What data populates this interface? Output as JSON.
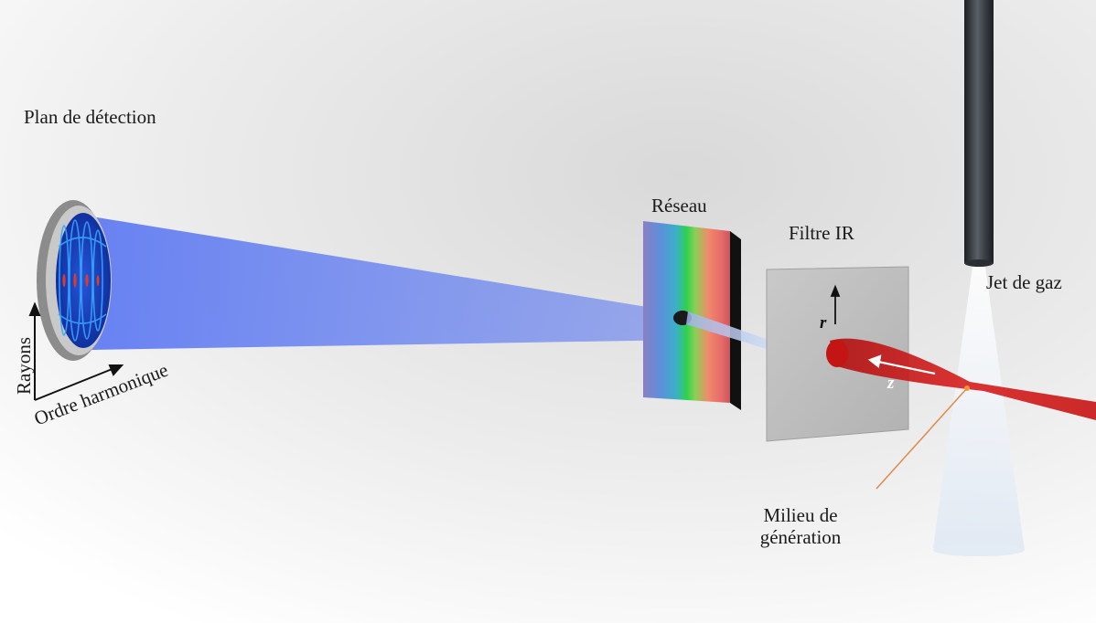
{
  "labels": {
    "detection_plane": "Plan de détection",
    "grating": "Réseau",
    "ir_filter": "Filtre IR",
    "gas_jet": "Jet de gaz",
    "medium_line1": "Milieu de",
    "medium_line2": "génération",
    "axis_rayons": "Rayons",
    "axis_ordre": "Ordre harmonique",
    "axis_r": "r",
    "axis_z": "z"
  },
  "colors": {
    "xuv_beam": "#5b78f0",
    "ir_beam": "#d11a1a",
    "pointer_line": "#e08a4a",
    "detector_face": "#1638b8",
    "gas_nozzle": "#3a3f45"
  }
}
